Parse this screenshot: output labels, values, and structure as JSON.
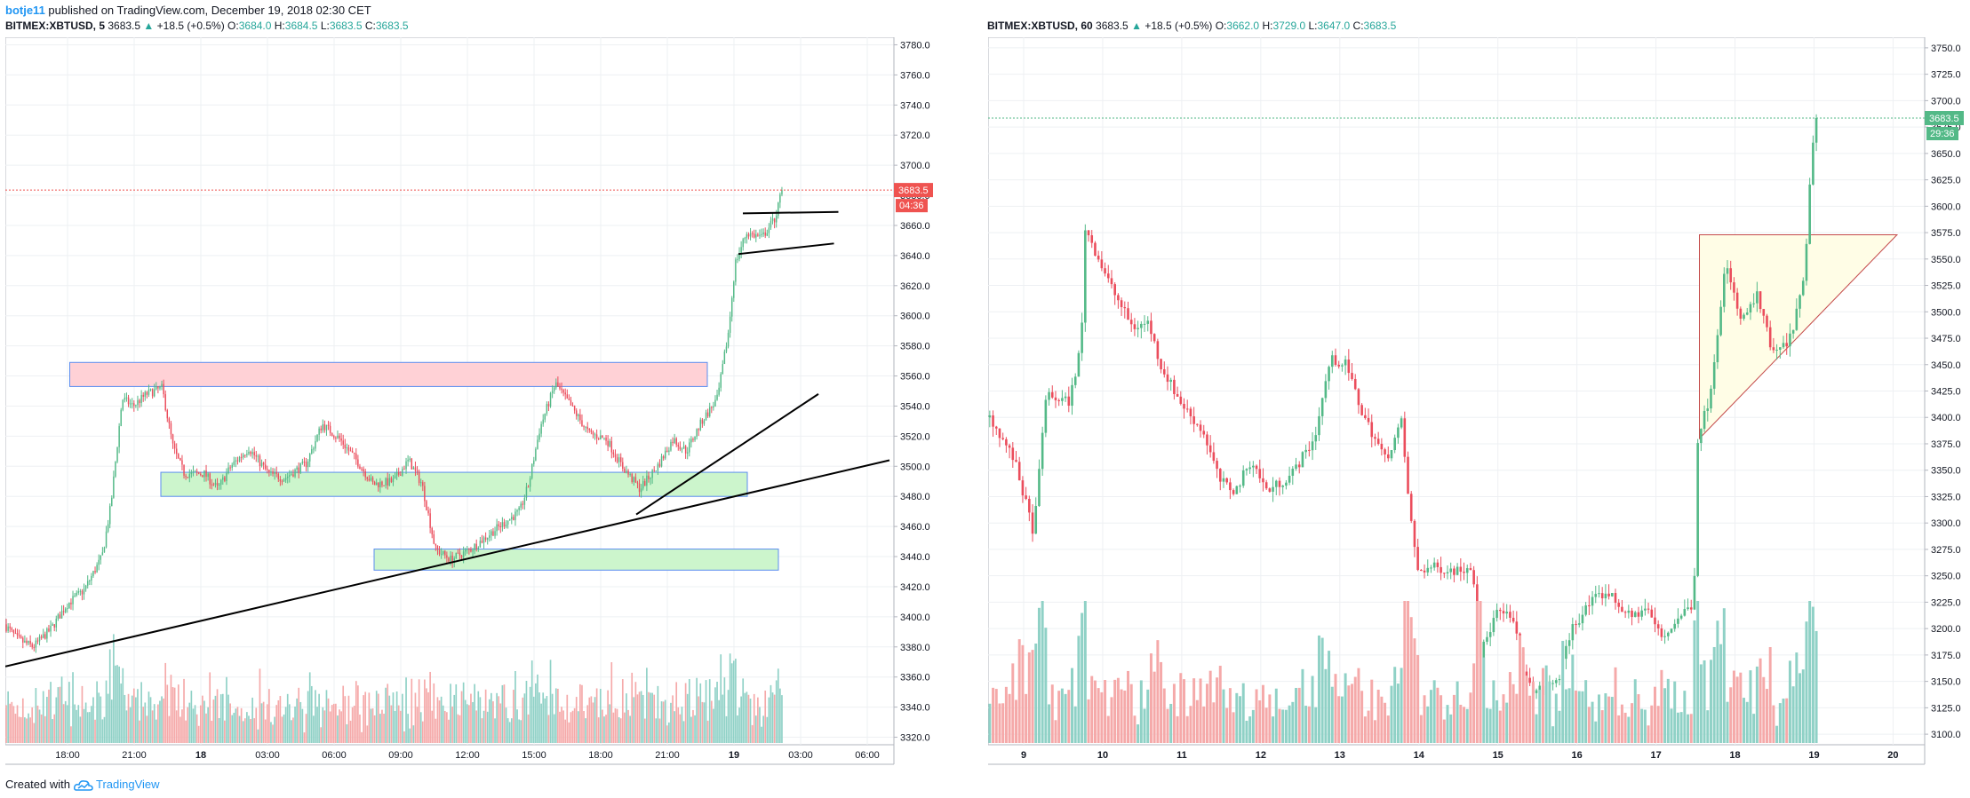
{
  "header": {
    "author": "botje11",
    "published": "published on TradingView.com, December 19, 2018 02:30 CET"
  },
  "footer": {
    "created_with": "Created with",
    "brand": "TradingView"
  },
  "colors": {
    "up": "#53b987",
    "down": "#eb4d5c",
    "vol_up": "#8fd1c6",
    "vol_down": "#f5a9a9",
    "grid": "#eef0f3"
  },
  "chart_data": [
    {
      "type": "candlestick",
      "legend": {
        "symbol": "BITMEX:XBTUSD, 5",
        "price": "3683.5",
        "change": "+18.5 (+0.5%)",
        "o_label": "O:",
        "o": "3684.0",
        "h_label": "H:",
        "h": "3684.5",
        "l_label": "L:",
        "l": "3683.5",
        "c_label": "C:",
        "c": "3683.5"
      },
      "ylim": [
        3315,
        3785
      ],
      "y_ticks": [
        3320,
        3340,
        3360,
        3380,
        3400,
        3420,
        3440,
        3460,
        3480,
        3500,
        3520,
        3540,
        3560,
        3580,
        3600,
        3620,
        3640,
        3660,
        3680,
        3700,
        3720,
        3740,
        3760,
        3780
      ],
      "x_ticks": [
        "18:00",
        "21:00",
        "18",
        "03:00",
        "06:00",
        "09:00",
        "12:00",
        "15:00",
        "18:00",
        "21:00",
        "19",
        "03:00",
        "06:00"
      ],
      "x_tick_hours": [
        18,
        21,
        24,
        27,
        30,
        33,
        36,
        39,
        42,
        45,
        48,
        51,
        54
      ],
      "x_range_hours": [
        15.2,
        55.2
      ],
      "bars_end_hour": 50.2,
      "last_price_label": "3683.5",
      "countdown": "04:36",
      "price_path": [
        [
          15.2,
          3395
        ],
        [
          15.8,
          3385
        ],
        [
          16.5,
          3380
        ],
        [
          17.3,
          3392
        ],
        [
          18,
          3408
        ],
        [
          18.8,
          3418
        ],
        [
          19.6,
          3440
        ],
        [
          20,
          3475
        ],
        [
          20.5,
          3545
        ],
        [
          21,
          3540
        ],
        [
          21.6,
          3548
        ],
        [
          22.3,
          3552
        ],
        [
          22.8,
          3512
        ],
        [
          23.3,
          3495
        ],
        [
          24.2,
          3495
        ],
        [
          24.8,
          3485
        ],
        [
          25.4,
          3500
        ],
        [
          26.2,
          3512
        ],
        [
          27.1,
          3495
        ],
        [
          27.8,
          3492
        ],
        [
          28.8,
          3502
        ],
        [
          29.5,
          3528
        ],
        [
          30.3,
          3518
        ],
        [
          31,
          3505
        ],
        [
          31.8,
          3488
        ],
        [
          32.7,
          3490
        ],
        [
          33.4,
          3504
        ],
        [
          34,
          3488
        ],
        [
          34.6,
          3445
        ],
        [
          35.3,
          3438
        ],
        [
          36.2,
          3445
        ],
        [
          37.3,
          3458
        ],
        [
          38.4,
          3470
        ],
        [
          38.8,
          3488
        ],
        [
          39.3,
          3525
        ],
        [
          40,
          3555
        ],
        [
          40.7,
          3540
        ],
        [
          41.5,
          3522
        ],
        [
          42.3,
          3518
        ],
        [
          43,
          3500
        ],
        [
          43.8,
          3485
        ],
        [
          44.6,
          3500
        ],
        [
          45.3,
          3518
        ],
        [
          45.9,
          3510
        ],
        [
          46.6,
          3530
        ],
        [
          47.3,
          3545
        ],
        [
          47.8,
          3590
        ],
        [
          48.1,
          3635
        ],
        [
          48.6,
          3655
        ],
        [
          49.3,
          3652
        ],
        [
          49.9,
          3665
        ],
        [
          50.2,
          3683.5
        ]
      ],
      "lines": [
        {
          "h0": 15.2,
          "p0": 3367,
          "h1": 55,
          "p1": 3504,
          "color": "#000000"
        },
        {
          "h0": 43.6,
          "p0": 3468,
          "h1": 51.8,
          "p1": 3548,
          "color": "#000000"
        },
        {
          "h0": 48.2,
          "p0": 3641,
          "h1": 52.5,
          "p1": 3648,
          "color": "#000000"
        },
        {
          "h0": 48.4,
          "p0": 3668,
          "h1": 52.7,
          "p1": 3669,
          "color": "#000000"
        }
      ],
      "zones": [
        {
          "h0": 18.1,
          "h1": 46.8,
          "p0": 3553,
          "p1": 3569,
          "color": "pink"
        },
        {
          "h0": 22.2,
          "h1": 48.6,
          "p0": 3480,
          "p1": 3496,
          "color": "green"
        },
        {
          "h0": 31.8,
          "h1": 50,
          "p0": 3431,
          "p1": 3445,
          "color": "green"
        }
      ]
    },
    {
      "type": "candlestick",
      "legend": {
        "symbol": "BITMEX:XBTUSD, 60",
        "price": "3683.5",
        "change": "+18.5 (+0.5%)",
        "o_label": "O:",
        "o": "3662.0",
        "h_label": "H:",
        "h": "3729.0",
        "l_label": "L:",
        "l": "3647.0",
        "c_label": "C:",
        "c": "3683.5"
      },
      "ylim": [
        3090,
        3760
      ],
      "y_ticks": [
        3100,
        3125,
        3150,
        3175,
        3200,
        3225,
        3250,
        3275,
        3300,
        3325,
        3350,
        3375,
        3400,
        3425,
        3450,
        3475,
        3500,
        3525,
        3550,
        3575,
        3600,
        3625,
        3650,
        3675,
        3700,
        3725,
        3750
      ],
      "x_ticks": [
        "9",
        "10",
        "11",
        "12",
        "13",
        "14",
        "15",
        "16",
        "17",
        "18",
        "19",
        "20"
      ],
      "x_tick_days": [
        9,
        10,
        11,
        12,
        13,
        14,
        15,
        16,
        17,
        18,
        19,
        20
      ],
      "x_range_days": [
        8.55,
        20.4
      ],
      "bars_end_day": 19.05,
      "last_price_label": "3683.5",
      "countdown": "29:36",
      "price_path": [
        [
          8.6,
          3400
        ],
        [
          8.9,
          3360
        ],
        [
          9.15,
          3290
        ],
        [
          9.3,
          3420
        ],
        [
          9.6,
          3415
        ],
        [
          9.75,
          3470
        ],
        [
          9.8,
          3580
        ],
        [
          10,
          3545
        ],
        [
          10.15,
          3520
        ],
        [
          10.4,
          3485
        ],
        [
          10.6,
          3490
        ],
        [
          10.75,
          3450
        ],
        [
          11,
          3415
        ],
        [
          11.3,
          3385
        ],
        [
          11.5,
          3340
        ],
        [
          11.7,
          3330
        ],
        [
          11.9,
          3360
        ],
        [
          12.1,
          3330
        ],
        [
          12.4,
          3345
        ],
        [
          12.7,
          3380
        ],
        [
          12.9,
          3455
        ],
        [
          13.1,
          3450
        ],
        [
          13.3,
          3405
        ],
        [
          13.6,
          3360
        ],
        [
          13.8,
          3395
        ],
        [
          13.9,
          3315
        ],
        [
          14,
          3255
        ],
        [
          14.2,
          3258
        ],
        [
          14.5,
          3255
        ],
        [
          14.7,
          3260
        ],
        [
          14.8,
          3175
        ],
        [
          15,
          3215
        ],
        [
          15.2,
          3210
        ],
        [
          15.4,
          3145
        ],
        [
          15.6,
          3140
        ],
        [
          15.8,
          3155
        ],
        [
          15.95,
          3200
        ],
        [
          16.2,
          3225
        ],
        [
          16.4,
          3235
        ],
        [
          16.7,
          3210
        ],
        [
          16.9,
          3220
        ],
        [
          17.1,
          3190
        ],
        [
          17.3,
          3210
        ],
        [
          17.5,
          3225
        ],
        [
          17.55,
          3380
        ],
        [
          17.7,
          3420
        ],
        [
          17.9,
          3545
        ],
        [
          18.1,
          3490
        ],
        [
          18.3,
          3515
        ],
        [
          18.5,
          3460
        ],
        [
          18.7,
          3470
        ],
        [
          18.9,
          3530
        ],
        [
          19.0,
          3660
        ],
        [
          19.05,
          3683.5
        ]
      ],
      "triangle": {
        "a": [
          17.55,
          3573
        ],
        "b": [
          20.05,
          3573
        ],
        "c": [
          17.55,
          3380
        ]
      }
    }
  ]
}
